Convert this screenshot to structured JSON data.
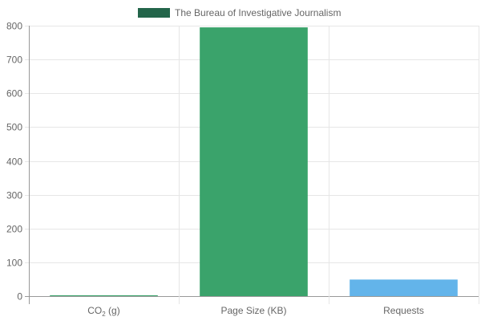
{
  "chart_data": {
    "type": "bar",
    "categories": [
      "CO2 (g)",
      "Page Size (KB)",
      "Requests"
    ],
    "category_labels": [
      {
        "main": "CO",
        "sub": "2",
        "rest": " (g)"
      },
      {
        "main": "Page Size (KB)",
        "sub": "",
        "rest": ""
      },
      {
        "main": "Requests",
        "sub": "",
        "rest": ""
      }
    ],
    "series": [
      {
        "name": "The Bureau of Investigative Journalism",
        "values": [
          0.3,
          795,
          49
        ]
      }
    ],
    "bar_colors": [
      "#3aa36b",
      "#3aa36b",
      "#63b4ea"
    ],
    "legend_color": "#23654a",
    "ylim": [
      0,
      800
    ],
    "y_ticks": [
      "0",
      "100",
      "200",
      "300",
      "400",
      "500",
      "600",
      "700",
      "800"
    ],
    "grid": true,
    "legend_position": "top-center",
    "axis_color": "#999999",
    "grid_color": "#e6e6e6",
    "text_color": "#666666"
  }
}
